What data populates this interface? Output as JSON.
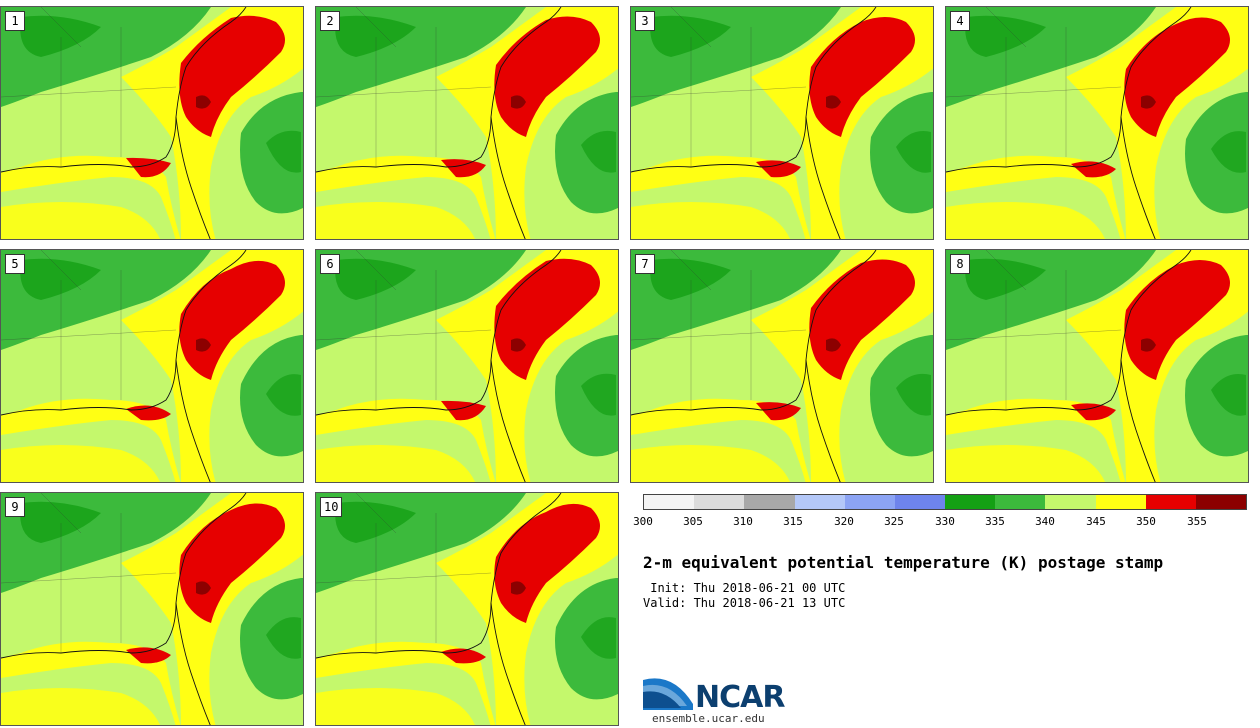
{
  "stamps": [
    {
      "label": "1"
    },
    {
      "label": "2"
    },
    {
      "label": "3"
    },
    {
      "label": "4"
    },
    {
      "label": "5"
    },
    {
      "label": "6"
    },
    {
      "label": "7"
    },
    {
      "label": "8"
    },
    {
      "label": "9"
    },
    {
      "label": "10"
    }
  ],
  "colorbar": {
    "colors": [
      "#f4f4f4",
      "#dcdcdc",
      "#a8a8a8",
      "#b4c8f8",
      "#8ca4f4",
      "#6e84ec",
      "#14a014",
      "#3cba3c",
      "#c4f86c",
      "#ffff14",
      "#e60000",
      "#8c0000"
    ],
    "ticks": [
      "300",
      "305",
      "310",
      "315",
      "320",
      "325",
      "330",
      "335",
      "340",
      "345",
      "350",
      "355"
    ]
  },
  "title": "2-m equivalent potential temperature (K) postage stamp",
  "init": " Init: Thu 2018-06-21 00 UTC",
  "valid": "Valid: Thu 2018-06-21 13 UTC",
  "logo": {
    "name": "NCAR",
    "url": "ensemble.ucar.edu"
  }
}
